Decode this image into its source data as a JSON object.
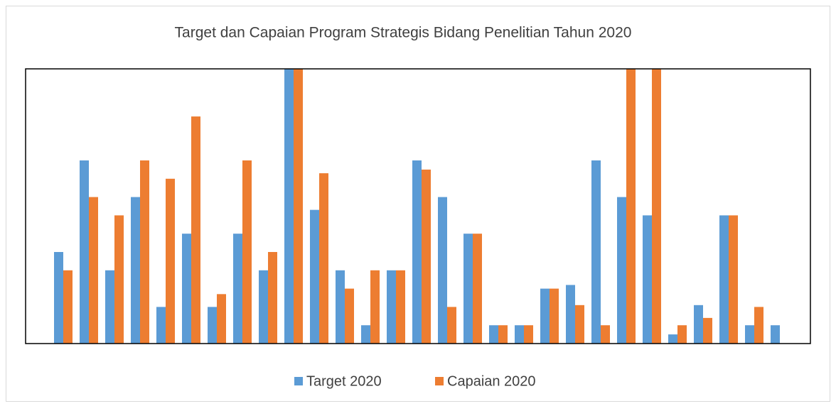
{
  "chart_data": {
    "type": "bar",
    "title": "Target dan Capaian Program Strategis Bidang Penelitian Tahun 2020",
    "categories": [
      null,
      null,
      null,
      null,
      null,
      null,
      null,
      null,
      null,
      null,
      null,
      null,
      null,
      null,
      null,
      null,
      null,
      null,
      null,
      null,
      null,
      null,
      null,
      null,
      null,
      null,
      null,
      null,
      null
    ],
    "series": [
      {
        "name": "Target 2020",
        "color": "#5b9bd5",
        "values": [
          5,
          10,
          4,
          8,
          2,
          6,
          2,
          6,
          4,
          15,
          7.3,
          4,
          1,
          4,
          10,
          8,
          6,
          1,
          1,
          3,
          3.2,
          10,
          8,
          7,
          0.5,
          2.1,
          7,
          1,
          1
        ]
      },
      {
        "name": "Capaian 2020",
        "color": "#ed7d31",
        "values": [
          4,
          8,
          7,
          10,
          9,
          12.4,
          2.7,
          10,
          5,
          15,
          9.3,
          3,
          4,
          4,
          9.5,
          2,
          6,
          1,
          1,
          3,
          2.1,
          1,
          15,
          15,
          1,
          1.4,
          7,
          2,
          0
        ]
      }
    ],
    "ylim": [
      0,
      15
    ]
  }
}
